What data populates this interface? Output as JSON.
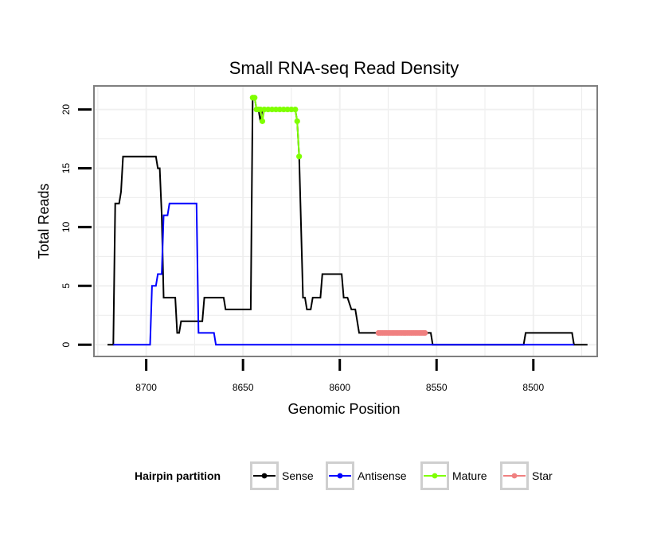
{
  "chart_data": {
    "type": "line",
    "title": "Small RNA-seq Read Density",
    "xlabel": "Genomic Position",
    "ylabel": "Total Reads",
    "xlim": [
      8727,
      8467
    ],
    "ylim": [
      -1,
      22
    ],
    "x_reversed": true,
    "x_ticks": [
      8700,
      8650,
      8600,
      8550,
      8500
    ],
    "y_ticks": [
      0,
      5,
      10,
      15,
      20
    ],
    "grid": true,
    "legend": {
      "title": "Hairpin partition",
      "position": "bottom",
      "entries": [
        "Sense",
        "Antisense",
        "Mature",
        "Star"
      ]
    },
    "series": [
      {
        "name": "Sense",
        "color": "#000000",
        "points": [
          [
            8720,
            0
          ],
          [
            8717,
            0
          ],
          [
            8716,
            12
          ],
          [
            8714,
            12
          ],
          [
            8713,
            13
          ],
          [
            8712,
            16
          ],
          [
            8695,
            16
          ],
          [
            8694,
            15
          ],
          [
            8693,
            15
          ],
          [
            8692,
            11
          ],
          [
            8691,
            4
          ],
          [
            8685,
            4
          ],
          [
            8684,
            1
          ],
          [
            8683,
            1
          ],
          [
            8682,
            2
          ],
          [
            8671,
            2
          ],
          [
            8670,
            4
          ],
          [
            8660,
            4
          ],
          [
            8659,
            3
          ],
          [
            8646,
            3
          ],
          [
            8645,
            21
          ],
          [
            8644,
            21
          ],
          [
            8643,
            20
          ],
          [
            8642,
            20
          ],
          [
            8641,
            19
          ],
          [
            8640,
            20
          ],
          [
            8623,
            20
          ],
          [
            8622,
            19
          ],
          [
            8621,
            16
          ],
          [
            8619,
            4
          ],
          [
            8618,
            4
          ],
          [
            8617,
            3
          ],
          [
            8615,
            3
          ],
          [
            8614,
            4
          ],
          [
            8610,
            4
          ],
          [
            8609,
            6
          ],
          [
            8599,
            6
          ],
          [
            8598,
            4
          ],
          [
            8596,
            4
          ],
          [
            8594,
            3
          ],
          [
            8592,
            3
          ],
          [
            8590,
            1
          ],
          [
            8553,
            1
          ],
          [
            8552,
            0
          ],
          [
            8505,
            0
          ],
          [
            8504,
            1
          ],
          [
            8480,
            1
          ],
          [
            8479,
            0
          ],
          [
            8472,
            0
          ]
        ]
      },
      {
        "name": "Antisense",
        "color": "#0000ff",
        "points": [
          [
            8717,
            0
          ],
          [
            8698,
            0
          ],
          [
            8697,
            5
          ],
          [
            8695,
            5
          ],
          [
            8694,
            6
          ],
          [
            8692,
            6
          ],
          [
            8691,
            11
          ],
          [
            8689,
            11
          ],
          [
            8688,
            12
          ],
          [
            8674,
            12
          ],
          [
            8673,
            1
          ],
          [
            8665,
            1
          ],
          [
            8664,
            0
          ],
          [
            8479,
            0
          ]
        ]
      },
      {
        "name": "Mature",
        "color": "#7fff00",
        "points": [
          [
            8645,
            21
          ],
          [
            8644,
            21
          ],
          [
            8643,
            20
          ],
          [
            8642,
            20
          ],
          [
            8641,
            20
          ],
          [
            8640,
            19
          ],
          [
            8639,
            20
          ],
          [
            8637,
            20
          ],
          [
            8635,
            20
          ],
          [
            8633,
            20
          ],
          [
            8631,
            20
          ],
          [
            8629,
            20
          ],
          [
            8627,
            20
          ],
          [
            8625,
            20
          ],
          [
            8623,
            20
          ],
          [
            8622,
            19
          ],
          [
            8621,
            16
          ]
        ]
      },
      {
        "name": "Star",
        "color": "#f08080",
        "points": [
          [
            8580,
            1
          ],
          [
            8579,
            1
          ],
          [
            8578,
            1
          ],
          [
            8577,
            1
          ],
          [
            8576,
            1
          ],
          [
            8575,
            1
          ],
          [
            8574,
            1
          ],
          [
            8573,
            1
          ],
          [
            8572,
            1
          ],
          [
            8571,
            1
          ],
          [
            8570,
            1
          ],
          [
            8569,
            1
          ],
          [
            8568,
            1
          ],
          [
            8567,
            1
          ],
          [
            8566,
            1
          ],
          [
            8565,
            1
          ],
          [
            8564,
            1
          ],
          [
            8563,
            1
          ],
          [
            8562,
            1
          ],
          [
            8561,
            1
          ],
          [
            8560,
            1
          ],
          [
            8559,
            1
          ],
          [
            8558,
            1
          ],
          [
            8557,
            1
          ],
          [
            8556,
            1
          ]
        ]
      }
    ]
  }
}
